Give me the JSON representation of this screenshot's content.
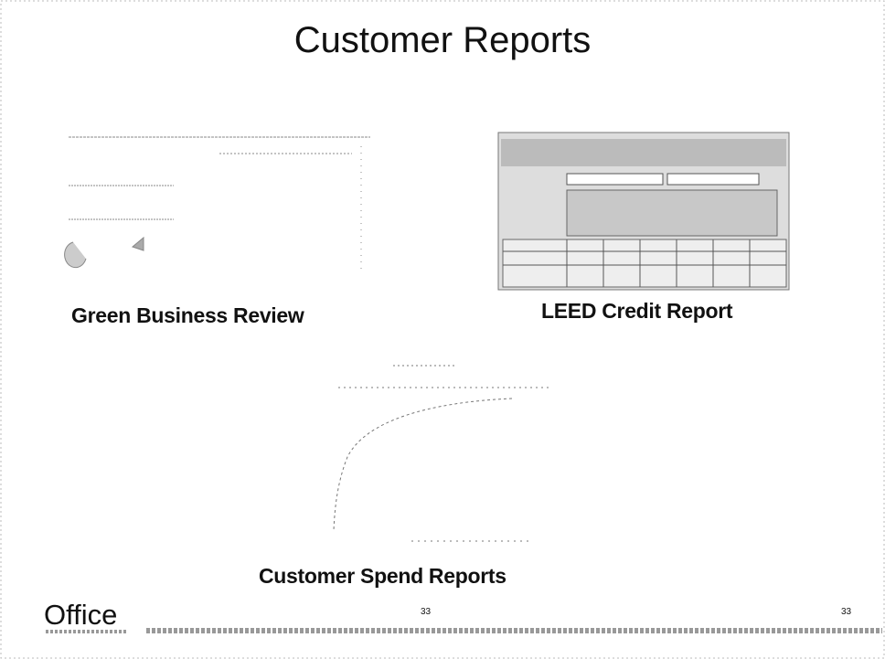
{
  "title": "Customer Reports",
  "reports": [
    {
      "caption": "Green Business Review"
    },
    {
      "caption": "LEED Credit Report"
    },
    {
      "caption": "Customer Spend Reports"
    }
  ],
  "footer": {
    "logo": "Office",
    "page_numbers": [
      "33",
      "33"
    ]
  }
}
